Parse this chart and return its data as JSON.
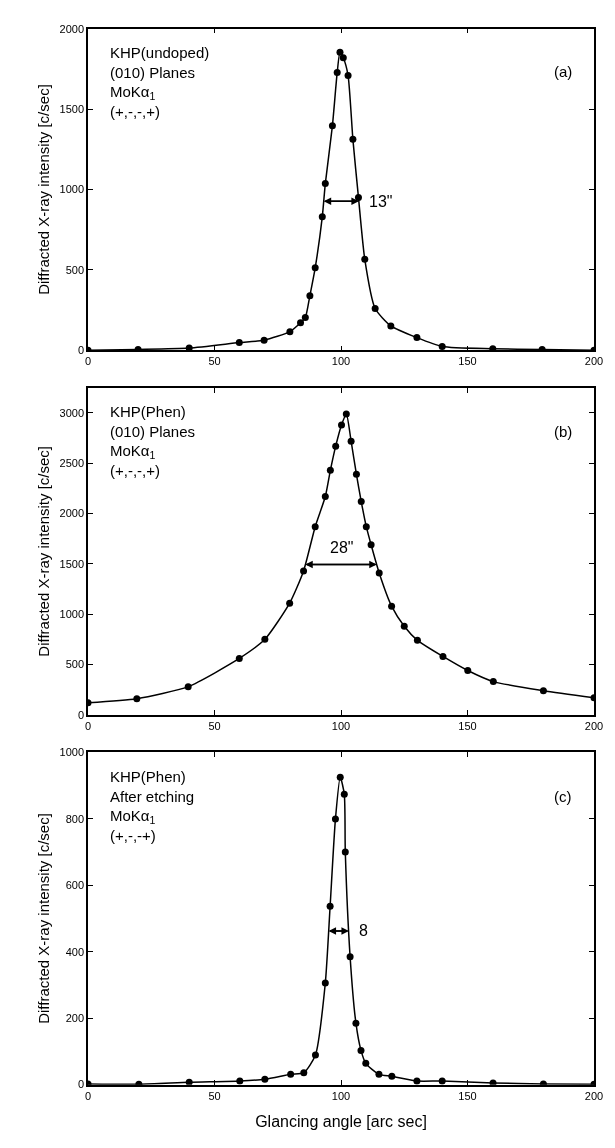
{
  "chart_data": [
    {
      "type": "line",
      "ylabel": "Diffracted X-ray intensity [c/sec]",
      "marker": "circle",
      "line_style": "solid",
      "x": [
        0,
        19.8,
        40,
        59.8,
        69.6,
        79.8,
        84,
        85.9,
        87.7,
        89.8,
        92.6,
        93.8,
        96.6,
        98.5,
        99.6,
        100.9,
        102.8,
        104.7,
        106.9,
        109.4,
        113.5,
        119.7,
        130,
        140,
        160,
        179.5,
        200
      ],
      "series": [
        {
          "color": "#000000",
          "values": [
            0,
            5,
            14,
            48,
            63,
            116,
            171,
            204,
            340,
            513,
            830,
            1037,
            1396,
            1728,
            1853,
            1819,
            1709,
            1312,
            951,
            566,
            260,
            152,
            79,
            24,
            10,
            5,
            0
          ]
        }
      ],
      "xlim": [
        0,
        200
      ],
      "xticks": [
        0,
        50,
        100,
        150,
        200
      ],
      "ylim": [
        0,
        2000
      ],
      "yticks": [
        0,
        500,
        1000,
        1500,
        2000
      ],
      "annotations": [
        "KHP(undoped)\n(010) Planes\nMoKα$_{1}$\n(+,-,-,+)",
        "(a)",
        "13\""
      ]
    },
    {
      "type": "line",
      "ylabel": "Diffracted X-ray intensity [c/sec]",
      "marker": "circle",
      "line_style": "solid",
      "x": [
        0,
        19.3,
        39.6,
        59.8,
        69.9,
        79.7,
        85.2,
        89.8,
        93.8,
        95.8,
        97.9,
        100.2,
        102.1,
        104,
        106.1,
        108,
        110,
        111.9,
        115.1,
        120,
        125,
        130.2,
        140.3,
        150.1,
        160.2,
        180,
        200
      ],
      "series": [
        {
          "color": "#000000",
          "values": [
            120,
            160,
            280,
            560,
            750,
            1110,
            1430,
            1870,
            2170,
            2430,
            2670,
            2880,
            2990,
            2720,
            2390,
            2120,
            1870,
            1690,
            1410,
            1080,
            880,
            740,
            580,
            440,
            330,
            240,
            170
          ]
        }
      ],
      "xlim": [
        0,
        200
      ],
      "xticks": [
        0,
        50,
        100,
        150,
        200
      ],
      "ylim": [
        0,
        3250
      ],
      "yticks": [
        0,
        500,
        1000,
        1500,
        2000,
        2500,
        3000
      ],
      "annotations": [
        "KHP(Phen)\n(010) Planes\nMoKα$_{1}$\n(+,-,-,+)",
        "(b)",
        "28\""
      ]
    },
    {
      "type": "line",
      "xlabel": "Glancing angle [arc sec]",
      "ylabel": "Diffracted X-ray intensity [c/sec]",
      "marker": "circle",
      "line_style": "solid",
      "x": [
        0,
        20.1,
        40,
        60,
        69.9,
        80.1,
        85.3,
        89.9,
        93.8,
        95.7,
        97.8,
        99.7,
        101.3,
        101.7,
        103.6,
        105.9,
        107.9,
        109.8,
        115,
        120.1,
        130,
        140,
        160.1,
        180,
        200
      ],
      "series": [
        {
          "color": "#000000",
          "values": [
            2,
            1,
            7,
            11,
            16,
            31,
            36,
            89,
            306,
            537,
            799,
            925,
            874,
            700,
            385,
            185,
            103,
            64,
            31,
            25,
            11,
            11,
            5,
            2,
            1
          ]
        }
      ],
      "xlim": [
        0,
        200
      ],
      "xticks": [
        0,
        50,
        100,
        150,
        200
      ],
      "ylim": [
        0,
        1000
      ],
      "yticks": [
        0,
        200,
        400,
        600,
        800,
        1000
      ],
      "annotations": [
        "KHP(Phen)\nAfter etching\nMoKα$_{1}$\n(+,-,-+)",
        "(c)",
        "8"
      ]
    }
  ]
}
